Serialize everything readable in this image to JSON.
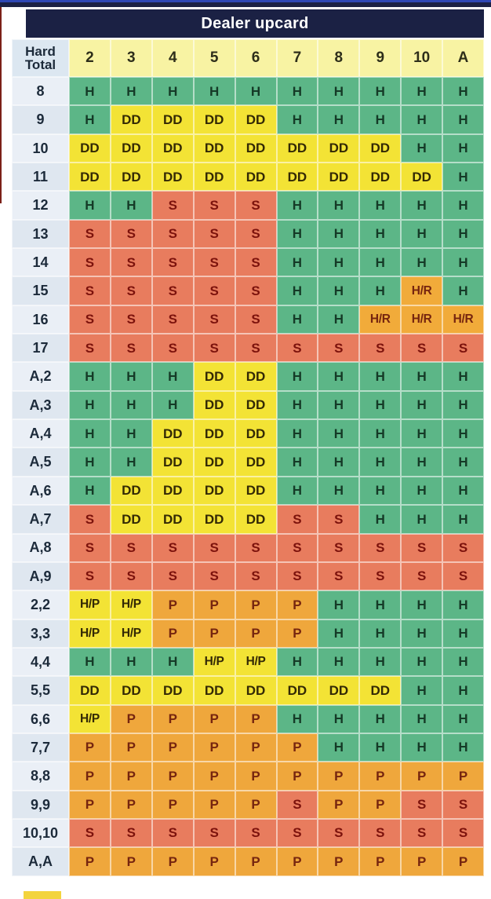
{
  "chart_data": {
    "type": "table",
    "title": "Dealer upcard",
    "corner_label": "Hard Total",
    "columns": [
      "2",
      "3",
      "4",
      "5",
      "6",
      "7",
      "8",
      "9",
      "10",
      "A"
    ],
    "rows": [
      {
        "label": "8",
        "cells": [
          "H",
          "H",
          "H",
          "H",
          "H",
          "H",
          "H",
          "H",
          "H",
          "H"
        ]
      },
      {
        "label": "9",
        "cells": [
          "H",
          "DD",
          "DD",
          "DD",
          "DD",
          "H",
          "H",
          "H",
          "H",
          "H"
        ]
      },
      {
        "label": "10",
        "cells": [
          "DD",
          "DD",
          "DD",
          "DD",
          "DD",
          "DD",
          "DD",
          "DD",
          "H",
          "H"
        ]
      },
      {
        "label": "11",
        "cells": [
          "DD",
          "DD",
          "DD",
          "DD",
          "DD",
          "DD",
          "DD",
          "DD",
          "DD",
          "H"
        ]
      },
      {
        "label": "12",
        "cells": [
          "H",
          "H",
          "S",
          "S",
          "S",
          "H",
          "H",
          "H",
          "H",
          "H"
        ]
      },
      {
        "label": "13",
        "cells": [
          "S",
          "S",
          "S",
          "S",
          "S",
          "H",
          "H",
          "H",
          "H",
          "H"
        ]
      },
      {
        "label": "14",
        "cells": [
          "S",
          "S",
          "S",
          "S",
          "S",
          "H",
          "H",
          "H",
          "H",
          "H"
        ]
      },
      {
        "label": "15",
        "cells": [
          "S",
          "S",
          "S",
          "S",
          "S",
          "H",
          "H",
          "H",
          "H/R",
          "H"
        ]
      },
      {
        "label": "16",
        "cells": [
          "S",
          "S",
          "S",
          "S",
          "S",
          "H",
          "H",
          "H/R",
          "H/R",
          "H/R"
        ]
      },
      {
        "label": "17",
        "cells": [
          "S",
          "S",
          "S",
          "S",
          "S",
          "S",
          "S",
          "S",
          "S",
          "S"
        ]
      },
      {
        "label": "A,2",
        "cells": [
          "H",
          "H",
          "H",
          "DD",
          "DD",
          "H",
          "H",
          "H",
          "H",
          "H"
        ]
      },
      {
        "label": "A,3",
        "cells": [
          "H",
          "H",
          "H",
          "DD",
          "DD",
          "H",
          "H",
          "H",
          "H",
          "H"
        ]
      },
      {
        "label": "A,4",
        "cells": [
          "H",
          "H",
          "DD",
          "DD",
          "DD",
          "H",
          "H",
          "H",
          "H",
          "H"
        ]
      },
      {
        "label": "A,5",
        "cells": [
          "H",
          "H",
          "DD",
          "DD",
          "DD",
          "H",
          "H",
          "H",
          "H",
          "H"
        ]
      },
      {
        "label": "A,6",
        "cells": [
          "H",
          "DD",
          "DD",
          "DD",
          "DD",
          "H",
          "H",
          "H",
          "H",
          "H"
        ]
      },
      {
        "label": "A,7",
        "cells": [
          "S",
          "DD",
          "DD",
          "DD",
          "DD",
          "S",
          "S",
          "H",
          "H",
          "H"
        ]
      },
      {
        "label": "A,8",
        "cells": [
          "S",
          "S",
          "S",
          "S",
          "S",
          "S",
          "S",
          "S",
          "S",
          "S"
        ]
      },
      {
        "label": "A,9",
        "cells": [
          "S",
          "S",
          "S",
          "S",
          "S",
          "S",
          "S",
          "S",
          "S",
          "S"
        ]
      },
      {
        "label": "2,2",
        "cells": [
          "H/P",
          "H/P",
          "P",
          "P",
          "P",
          "P",
          "H",
          "H",
          "H",
          "H"
        ]
      },
      {
        "label": "3,3",
        "cells": [
          "H/P",
          "H/P",
          "P",
          "P",
          "P",
          "P",
          "H",
          "H",
          "H",
          "H"
        ]
      },
      {
        "label": "4,4",
        "cells": [
          "H",
          "H",
          "H",
          "H/P",
          "H/P",
          "H",
          "H",
          "H",
          "H",
          "H"
        ]
      },
      {
        "label": "5,5",
        "cells": [
          "DD",
          "DD",
          "DD",
          "DD",
          "DD",
          "DD",
          "DD",
          "DD",
          "H",
          "H"
        ]
      },
      {
        "label": "6,6",
        "cells": [
          "H/P",
          "P",
          "P",
          "P",
          "P",
          "H",
          "H",
          "H",
          "H",
          "H"
        ]
      },
      {
        "label": "7,7",
        "cells": [
          "P",
          "P",
          "P",
          "P",
          "P",
          "P",
          "H",
          "H",
          "H",
          "H"
        ]
      },
      {
        "label": "8,8",
        "cells": [
          "P",
          "P",
          "P",
          "P",
          "P",
          "P",
          "P",
          "P",
          "P",
          "P"
        ]
      },
      {
        "label": "9,9",
        "cells": [
          "P",
          "P",
          "P",
          "P",
          "P",
          "S",
          "P",
          "P",
          "S",
          "S"
        ]
      },
      {
        "label": "10,10",
        "cells": [
          "S",
          "S",
          "S",
          "S",
          "S",
          "S",
          "S",
          "S",
          "S",
          "S"
        ]
      },
      {
        "label": "A,A",
        "cells": [
          "P",
          "P",
          "P",
          "P",
          "P",
          "P",
          "P",
          "P",
          "P",
          "P"
        ]
      }
    ],
    "action_colors": {
      "H": {
        "bg": "#5cb687",
        "fg": "#153a27"
      },
      "S": {
        "bg": "#e87c5e",
        "fg": "#7c120c"
      },
      "DD": {
        "bg": "#f3e335",
        "fg": "#332905"
      },
      "P": {
        "bg": "#efa73c",
        "fg": "#76250f"
      },
      "H/P": {
        "bg": "#f3e335",
        "fg": "#332905"
      },
      "H/R": {
        "bg": "#f1ab3a",
        "fg": "#76250f"
      }
    }
  },
  "theme": {
    "page_bg": "#ffffff",
    "banner_bg": "#1b2144",
    "banner_fg": "#ffffff",
    "colhead_bg": "#f8f3a3",
    "colhead_fg": "#2e2e1a",
    "corner_bg": "#dce7f1",
    "label_bg": "#eaeff6",
    "label_alt_bg": "#dfe7f0",
    "label_fg": "#1c2a3a",
    "top_strip_bg": "#1b2144",
    "top_strip_line": "#2e47b4",
    "left_strip": "#7b2018",
    "grid_line": "rgba(255,255,255,0.55)",
    "legend_swatch": "#f3d43e"
  }
}
